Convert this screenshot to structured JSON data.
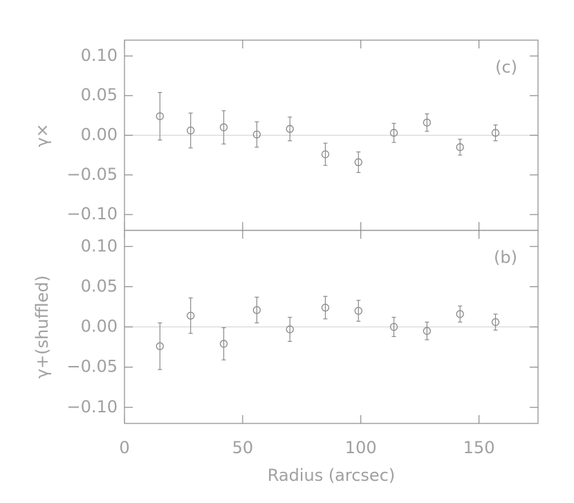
{
  "chart_data": [
    {
      "type": "scatter",
      "ylabel": "γ×",
      "annotation": "(c)",
      "x": [
        15,
        28,
        42,
        56,
        70,
        85,
        99,
        114,
        128,
        142,
        157
      ],
      "series": [
        {
          "color": "#8a8a8a",
          "values": [
            0.024,
            0.006,
            0.01,
            0.001,
            0.008,
            -0.024,
            -0.034,
            0.003,
            0.016,
            -0.015,
            0.003
          ],
          "errors": [
            0.03,
            0.022,
            0.021,
            0.016,
            0.015,
            0.014,
            0.013,
            0.012,
            0.011,
            0.01,
            0.01
          ]
        }
      ],
      "xlim": [
        0,
        175
      ],
      "ylim": [
        -0.12,
        0.12
      ],
      "yticks": [
        {
          "value": -0.1,
          "label": "−0.10"
        },
        {
          "value": -0.05,
          "label": "−0.05"
        },
        {
          "value": 0,
          "label": "0.00"
        },
        {
          "value": 0.05,
          "label": "0.05"
        },
        {
          "value": 0.1,
          "label": "0.10"
        }
      ],
      "zero_line": true
    },
    {
      "type": "scatter",
      "ylabel": "γ+(shuffled)",
      "annotation": "(b)",
      "xlabel": "Radius (arcsec)",
      "x": [
        15,
        28,
        42,
        56,
        70,
        85,
        99,
        114,
        128,
        142,
        157
      ],
      "series": [
        {
          "color": "#8a8a8a",
          "values": [
            -0.024,
            0.014,
            -0.021,
            0.021,
            -0.003,
            0.024,
            0.02,
            0.0,
            -0.005,
            0.016,
            0.006
          ],
          "errors": [
            0.029,
            0.022,
            0.02,
            0.016,
            0.015,
            0.014,
            0.013,
            0.012,
            0.011,
            0.01,
            0.01
          ]
        }
      ],
      "xlim": [
        0,
        175
      ],
      "xticks": [
        0,
        50,
        100,
        150
      ],
      "ylim": [
        -0.12,
        0.12
      ],
      "yticks": [
        {
          "value": -0.1,
          "label": "−0.10"
        },
        {
          "value": -0.05,
          "label": "−0.05"
        },
        {
          "value": 0,
          "label": "0.00"
        },
        {
          "value": 0.05,
          "label": "0.05"
        },
        {
          "value": 0.1,
          "label": "0.10"
        }
      ],
      "zero_line": true
    }
  ]
}
